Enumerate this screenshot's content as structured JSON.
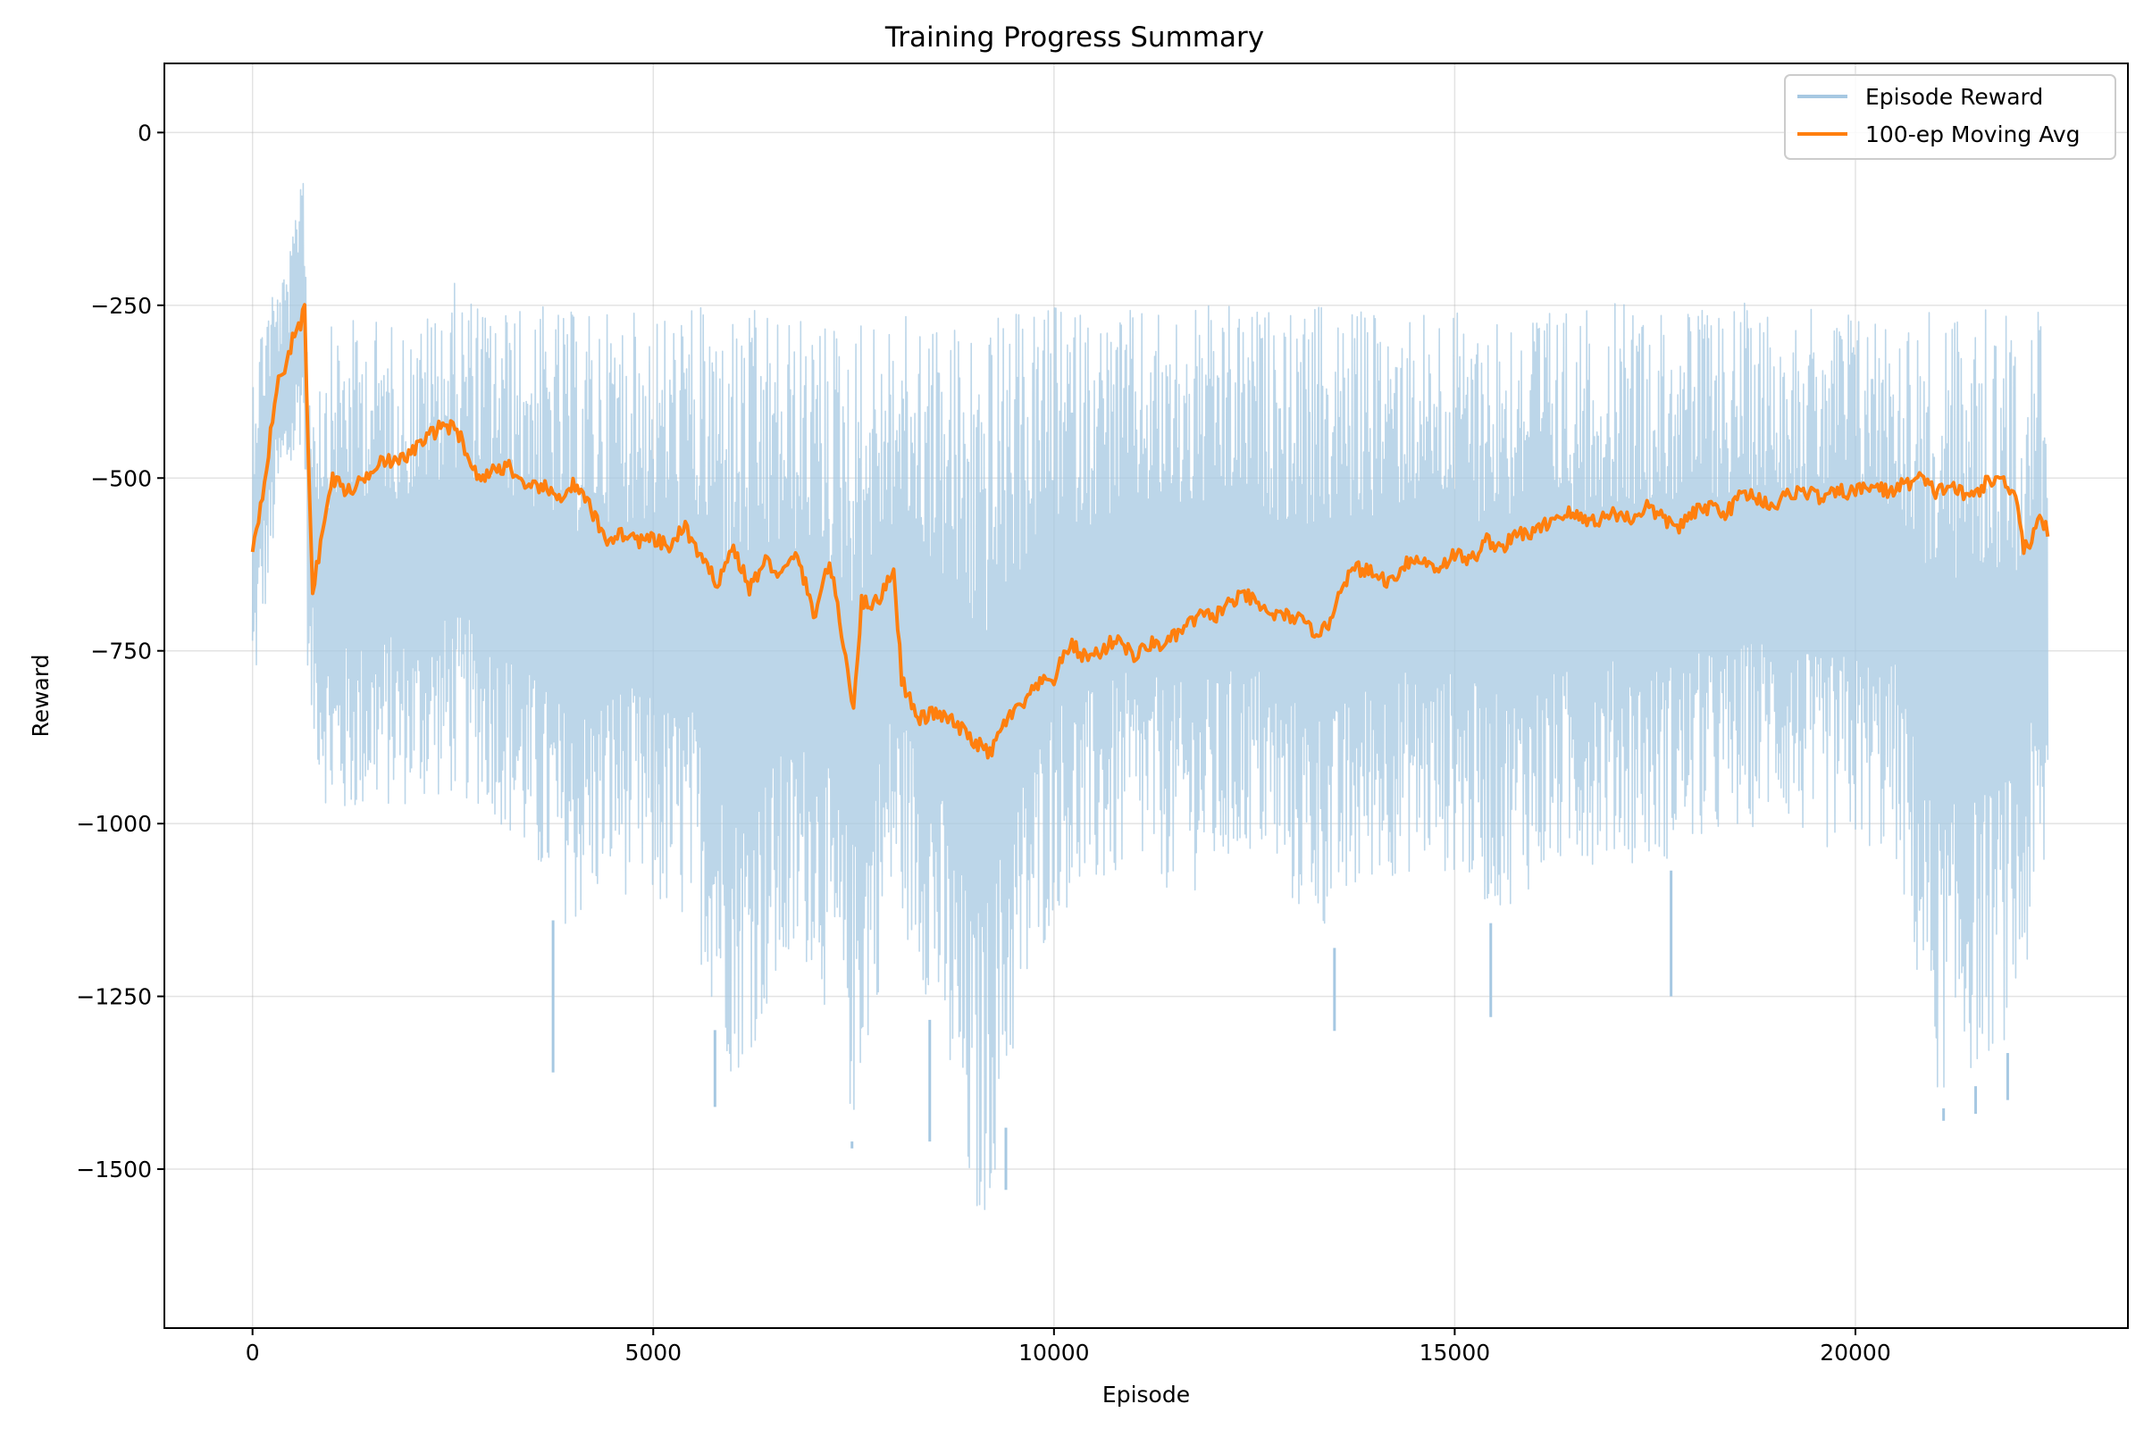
{
  "chart_data": {
    "type": "line",
    "title": "Training Progress Summary",
    "xlabel": "Episode",
    "ylabel": "Reward",
    "xlim": [
      -1100,
      23400
    ],
    "ylim": [
      -1730,
      100
    ],
    "x_ticks": [
      {
        "value": 0,
        "label": "0"
      },
      {
        "value": 5000,
        "label": "5000"
      },
      {
        "value": 10000,
        "label": "10000"
      },
      {
        "value": 15000,
        "label": "15000"
      },
      {
        "value": 20000,
        "label": "20000"
      }
    ],
    "y_ticks": [
      {
        "value": 0,
        "label": "0"
      },
      {
        "value": -250,
        "label": "−250"
      },
      {
        "value": -500,
        "label": "−500"
      },
      {
        "value": -750,
        "label": "−750"
      },
      {
        "value": -1000,
        "label": "−1000"
      },
      {
        "value": -1250,
        "label": "−1250"
      },
      {
        "value": -1500,
        "label": "−1500"
      }
    ],
    "grid": true,
    "legend_position": "top-right",
    "series": [
      {
        "name": "Episode Reward",
        "color": "#a6c8e2",
        "style": "band",
        "x": [
          0,
          100,
          200,
          300,
          400,
          500,
          600,
          650,
          700,
          800,
          1000,
          1500,
          2000,
          2500,
          3000,
          3500,
          4000,
          4500,
          5000,
          5500,
          6000,
          6500,
          7000,
          7500,
          8000,
          8500,
          9000,
          9200,
          9500,
          10000,
          10500,
          11000,
          11500,
          12000,
          12500,
          13000,
          13500,
          14000,
          14500,
          15000,
          15500,
          16000,
          16500,
          17000,
          17500,
          18000,
          18500,
          19000,
          19500,
          20000,
          20500,
          21000,
          21500,
          22000,
          22400
        ],
        "upper": [
          -300,
          -260,
          -200,
          -210,
          -195,
          -150,
          20,
          -40,
          -300,
          -320,
          -260,
          -250,
          -270,
          -200,
          -240,
          -230,
          -240,
          -240,
          -240,
          -230,
          -230,
          -240,
          -250,
          -240,
          -250,
          -240,
          -240,
          -240,
          -240,
          -230,
          -240,
          -240,
          -240,
          -230,
          -240,
          -240,
          -230,
          -240,
          -230,
          -240,
          -230,
          -230,
          -240,
          -230,
          -230,
          -240,
          -230,
          -230,
          -240,
          -230,
          -240,
          -230,
          -230,
          -240,
          -220
        ],
        "lower": [
          -880,
          -740,
          -690,
          -560,
          -520,
          -510,
          -460,
          -480,
          -880,
          -930,
          -1030,
          -1000,
          -990,
          -980,
          -1000,
          -1100,
          -1180,
          -1110,
          -1150,
          -1180,
          -1400,
          -1290,
          -1220,
          -1470,
          -1140,
          -1300,
          -1640,
          -1580,
          -1370,
          -1150,
          -1130,
          -1090,
          -1120,
          -1110,
          -1060,
          -1150,
          -1180,
          -1100,
          -1090,
          -1090,
          -1150,
          -1110,
          -1080,
          -1070,
          -1080,
          -1050,
          -1040,
          -1000,
          -1060,
          -1050,
          -1070,
          -1420,
          -1380,
          -1320,
          -1110
        ],
        "spikes": [
          {
            "x": 3750,
            "y": -1360
          },
          {
            "x": 5770,
            "y": -1410
          },
          {
            "x": 7480,
            "y": -1470
          },
          {
            "x": 8450,
            "y": -1460
          },
          {
            "x": 9000,
            "y": -1640
          },
          {
            "x": 9400,
            "y": -1530
          },
          {
            "x": 13500,
            "y": -1300
          },
          {
            "x": 15450,
            "y": -1280
          },
          {
            "x": 17700,
            "y": -1250
          },
          {
            "x": 21100,
            "y": -1430
          },
          {
            "x": 21500,
            "y": -1420
          },
          {
            "x": 21900,
            "y": -1400
          }
        ]
      },
      {
        "name": "100-ep Moving Avg",
        "color": "#ff7f0e",
        "style": "line",
        "x": [
          0,
          50,
          100,
          200,
          300,
          400,
          500,
          600,
          650,
          700,
          750,
          800,
          900,
          1000,
          1200,
          1400,
          1600,
          1800,
          2000,
          2200,
          2400,
          2600,
          2800,
          3000,
          3200,
          3400,
          3600,
          3800,
          4000,
          4200,
          4400,
          4600,
          4800,
          5000,
          5200,
          5400,
          5600,
          5800,
          6000,
          6200,
          6400,
          6600,
          6800,
          7000,
          7200,
          7400,
          7500,
          7600,
          7800,
          8000,
          8100,
          8300,
          8500,
          8700,
          8900,
          9200,
          9400,
          9600,
          9800,
          10000,
          10200,
          10400,
          10600,
          10800,
          11000,
          11200,
          11400,
          11600,
          11800,
          12000,
          12200,
          12400,
          12600,
          12800,
          13000,
          13200,
          13400,
          13600,
          13800,
          14000,
          14200,
          14400,
          14600,
          14800,
          15000,
          15200,
          15400,
          15600,
          15800,
          16000,
          16200,
          16400,
          16600,
          16800,
          17000,
          17200,
          17400,
          17600,
          17800,
          18000,
          18200,
          18400,
          18600,
          18800,
          19000,
          19200,
          19400,
          19600,
          19800,
          20000,
          20200,
          20400,
          20600,
          20800,
          21000,
          21200,
          21400,
          21600,
          21800,
          22000,
          22100,
          22200,
          22300,
          22400
        ],
        "y": [
          -600,
          -570,
          -540,
          -460,
          -370,
          -340,
          -300,
          -280,
          -250,
          -480,
          -660,
          -630,
          -560,
          -500,
          -520,
          -500,
          -470,
          -480,
          -460,
          -440,
          -420,
          -440,
          -500,
          -490,
          -480,
          -520,
          -510,
          -530,
          -510,
          -540,
          -590,
          -580,
          -590,
          -590,
          -600,
          -570,
          -620,
          -650,
          -600,
          -660,
          -620,
          -640,
          -610,
          -700,
          -620,
          -760,
          -830,
          -680,
          -680,
          -630,
          -790,
          -850,
          -840,
          -850,
          -870,
          -900,
          -850,
          -830,
          -800,
          -790,
          -740,
          -760,
          -750,
          -730,
          -760,
          -740,
          -740,
          -720,
          -700,
          -700,
          -680,
          -670,
          -690,
          -700,
          -700,
          -720,
          -720,
          -650,
          -630,
          -640,
          -650,
          -620,
          -620,
          -630,
          -610,
          -620,
          -590,
          -600,
          -580,
          -580,
          -560,
          -550,
          -560,
          -560,
          -550,
          -560,
          -540,
          -560,
          -570,
          -550,
          -540,
          -550,
          -520,
          -530,
          -540,
          -520,
          -520,
          -530,
          -520,
          -520,
          -510,
          -520,
          -510,
          -500,
          -520,
          -510,
          -530,
          -510,
          -500,
          -520,
          -600,
          -590,
          -550,
          -580
        ]
      }
    ]
  }
}
